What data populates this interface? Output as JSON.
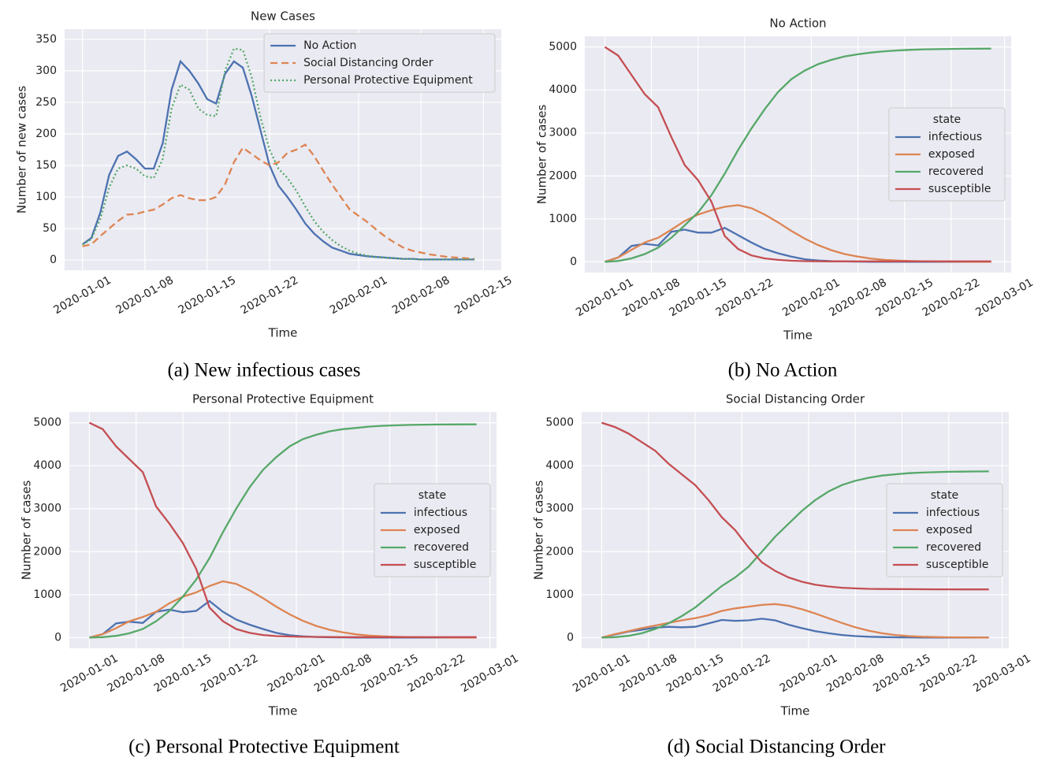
{
  "chart_data": [
    {
      "type": "line",
      "title": "New Cases",
      "caption": "(a) New infectious cases",
      "xlabel": "Time",
      "ylabel": "Number of new cases",
      "x": [
        "2020-01-01",
        "2020-01-02",
        "2020-01-03",
        "2020-01-04",
        "2020-01-05",
        "2020-01-06",
        "2020-01-07",
        "2020-01-08",
        "2020-01-09",
        "2020-01-10",
        "2020-01-11",
        "2020-01-12",
        "2020-01-13",
        "2020-01-14",
        "2020-01-15",
        "2020-01-16",
        "2020-01-17",
        "2020-01-18",
        "2020-01-19",
        "2020-01-20",
        "2020-01-21",
        "2020-01-22",
        "2020-01-23",
        "2020-01-24",
        "2020-01-25",
        "2020-01-26",
        "2020-01-27",
        "2020-01-28",
        "2020-01-29",
        "2020-01-30",
        "2020-01-31",
        "2020-02-01",
        "2020-02-02",
        "2020-02-03",
        "2020-02-04",
        "2020-02-05",
        "2020-02-06",
        "2020-02-07",
        "2020-02-08",
        "2020-02-09",
        "2020-02-10",
        "2020-02-11",
        "2020-02-12",
        "2020-02-13",
        "2020-02-14"
      ],
      "xlim": [
        "2019-12-30",
        "2020-02-17"
      ],
      "xticks": [
        "2020-01-01",
        "2020-01-08",
        "2020-01-15",
        "2020-01-22",
        "2020-02-01",
        "2020-02-08",
        "2020-02-15"
      ],
      "ylim": [
        -16,
        366
      ],
      "yticks": [
        0,
        50,
        100,
        150,
        200,
        250,
        300,
        350
      ],
      "grid": true,
      "legend": "upper right",
      "series": [
        {
          "name": "No Action",
          "color": "#4c72b0",
          "dash": "solid",
          "values": [
            25,
            35,
            75,
            135,
            165,
            172,
            160,
            145,
            145,
            185,
            270,
            315,
            300,
            280,
            255,
            248,
            295,
            315,
            305,
            260,
            205,
            150,
            118,
            100,
            80,
            58,
            42,
            30,
            20,
            15,
            10,
            8,
            6,
            5,
            4,
            3,
            2,
            2,
            1,
            1,
            1,
            1,
            1,
            1,
            1
          ]
        },
        {
          "name": "Social Distancing Order",
          "color": "#dd8452",
          "dash": "dashed",
          "values": [
            22,
            25,
            38,
            50,
            62,
            72,
            73,
            77,
            80,
            88,
            98,
            103,
            98,
            95,
            95,
            100,
            120,
            155,
            178,
            168,
            158,
            150,
            155,
            170,
            175,
            183,
            165,
            142,
            120,
            100,
            80,
            70,
            60,
            48,
            37,
            28,
            20,
            15,
            12,
            9,
            7,
            5,
            4,
            3,
            2
          ]
        },
        {
          "name": "Personal Protective Equipment",
          "color": "#55a868",
          "dash": "dotted",
          "values": [
            25,
            33,
            65,
            115,
            145,
            150,
            145,
            133,
            130,
            160,
            240,
            278,
            270,
            240,
            230,
            228,
            300,
            335,
            333,
            290,
            225,
            175,
            145,
            130,
            110,
            85,
            62,
            45,
            32,
            22,
            15,
            10,
            7,
            5,
            4,
            3,
            2,
            2,
            1,
            1,
            1,
            1,
            1,
            1,
            1
          ]
        }
      ]
    },
    {
      "type": "line",
      "title": "No Action",
      "caption": "(b) No Action",
      "xlabel": "Time",
      "ylabel": "Number of cases",
      "x": [
        "2020-01-01",
        "2020-01-03",
        "2020-01-05",
        "2020-01-07",
        "2020-01-09",
        "2020-01-11",
        "2020-01-13",
        "2020-01-15",
        "2020-01-17",
        "2020-01-19",
        "2020-01-21",
        "2020-01-23",
        "2020-01-25",
        "2020-01-27",
        "2020-01-29",
        "2020-01-31",
        "2020-02-02",
        "2020-02-04",
        "2020-02-06",
        "2020-02-08",
        "2020-02-10",
        "2020-02-12",
        "2020-02-14",
        "2020-02-16",
        "2020-02-18",
        "2020-02-20",
        "2020-02-22",
        "2020-02-24",
        "2020-02-26",
        "2020-02-28"
      ],
      "xlim": [
        "2019-12-29",
        "2020-03-02"
      ],
      "xticks": [
        "2020-01-01",
        "2020-01-08",
        "2020-01-15",
        "2020-01-22",
        "2020-02-01",
        "2020-02-08",
        "2020-02-15",
        "2020-02-22",
        "2020-03-01"
      ],
      "ylim": [
        -250,
        5250
      ],
      "yticks": [
        0,
        1000,
        2000,
        3000,
        4000,
        5000
      ],
      "grid": true,
      "legend": "center right",
      "legend_title": "state",
      "series": [
        {
          "name": "infectious",
          "color": "#4c72b0",
          "dash": "solid",
          "values": [
            0,
            100,
            370,
            420,
            380,
            700,
            750,
            680,
            680,
            790,
            620,
            450,
            300,
            200,
            120,
            60,
            30,
            15,
            8,
            4,
            2,
            1,
            1,
            1,
            1,
            1,
            1,
            1,
            1,
            1
          ]
        },
        {
          "name": "exposed",
          "color": "#dd8452",
          "dash": "solid",
          "values": [
            0,
            100,
            280,
            450,
            560,
            750,
            950,
            1100,
            1200,
            1280,
            1320,
            1250,
            1100,
            920,
            720,
            540,
            390,
            270,
            180,
            120,
            75,
            45,
            28,
            17,
            10,
            6,
            4,
            2,
            1,
            1
          ]
        },
        {
          "name": "recovered",
          "color": "#55a868",
          "dash": "solid",
          "values": [
            0,
            20,
            80,
            180,
            330,
            560,
            850,
            1150,
            1550,
            2050,
            2600,
            3100,
            3550,
            3950,
            4250,
            4450,
            4600,
            4700,
            4780,
            4830,
            4870,
            4900,
            4920,
            4935,
            4945,
            4950,
            4955,
            4958,
            4960,
            4962
          ]
        },
        {
          "name": "susceptible",
          "color": "#c44e52",
          "dash": "solid",
          "values": [
            5000,
            4800,
            4350,
            3900,
            3600,
            2900,
            2250,
            1900,
            1400,
            600,
            300,
            150,
            80,
            45,
            25,
            15,
            12,
            10,
            10,
            10,
            10,
            10,
            10,
            10,
            10,
            10,
            10,
            10,
            10,
            10
          ]
        }
      ]
    },
    {
      "type": "line",
      "title": "Personal Protective Equipment",
      "caption": "(c) Personal Protective Equipment",
      "xlabel": "Time",
      "ylabel": "Number of cases",
      "x": [
        "2020-01-01",
        "2020-01-03",
        "2020-01-05",
        "2020-01-07",
        "2020-01-09",
        "2020-01-11",
        "2020-01-13",
        "2020-01-15",
        "2020-01-17",
        "2020-01-19",
        "2020-01-21",
        "2020-01-23",
        "2020-01-25",
        "2020-01-27",
        "2020-01-29",
        "2020-01-31",
        "2020-02-02",
        "2020-02-04",
        "2020-02-06",
        "2020-02-08",
        "2020-02-10",
        "2020-02-12",
        "2020-02-14",
        "2020-02-16",
        "2020-02-18",
        "2020-02-20",
        "2020-02-22",
        "2020-02-24",
        "2020-02-26",
        "2020-02-28"
      ],
      "xlim": [
        "2019-12-29",
        "2020-03-02"
      ],
      "xticks": [
        "2020-01-01",
        "2020-01-08",
        "2020-01-15",
        "2020-01-22",
        "2020-02-01",
        "2020-02-08",
        "2020-02-15",
        "2020-02-22",
        "2020-03-01"
      ],
      "ylim": [
        -250,
        5250
      ],
      "yticks": [
        0,
        1000,
        2000,
        3000,
        4000,
        5000
      ],
      "grid": true,
      "legend": "center right",
      "legend_title": "state",
      "series": [
        {
          "name": "infectious",
          "color": "#4c72b0",
          "dash": "solid",
          "values": [
            0,
            80,
            330,
            370,
            340,
            600,
            650,
            590,
            620,
            850,
            600,
            420,
            300,
            200,
            110,
            55,
            28,
            14,
            7,
            4,
            2,
            1,
            1,
            1,
            1,
            1,
            1,
            1,
            1,
            1
          ]
        },
        {
          "name": "exposed",
          "color": "#dd8452",
          "dash": "solid",
          "values": [
            0,
            80,
            220,
            380,
            480,
            600,
            800,
            950,
            1050,
            1200,
            1310,
            1250,
            1100,
            920,
            720,
            540,
            390,
            270,
            180,
            120,
            75,
            45,
            28,
            17,
            10,
            6,
            4,
            2,
            1,
            1
          ]
        },
        {
          "name": "recovered",
          "color": "#55a868",
          "dash": "solid",
          "values": [
            0,
            10,
            40,
            100,
            200,
            380,
            620,
            950,
            1350,
            1850,
            2450,
            3000,
            3500,
            3900,
            4200,
            4450,
            4620,
            4720,
            4800,
            4850,
            4880,
            4910,
            4930,
            4940,
            4950,
            4955,
            4958,
            4960,
            4962,
            4963
          ]
        },
        {
          "name": "susceptible",
          "color": "#c44e52",
          "dash": "solid",
          "values": [
            5000,
            4850,
            4450,
            4150,
            3850,
            3050,
            2650,
            2200,
            1600,
            700,
            380,
            200,
            110,
            60,
            35,
            25,
            18,
            15,
            12,
            10,
            10,
            10,
            10,
            10,
            10,
            10,
            10,
            10,
            10,
            10
          ]
        }
      ]
    },
    {
      "type": "line",
      "title": "Social Distancing Order",
      "caption": "(d) Social Distancing Order",
      "xlabel": "Time",
      "ylabel": "Number of cases",
      "x": [
        "2020-01-01",
        "2020-01-03",
        "2020-01-05",
        "2020-01-07",
        "2020-01-09",
        "2020-01-11",
        "2020-01-13",
        "2020-01-15",
        "2020-01-17",
        "2020-01-19",
        "2020-01-21",
        "2020-01-23",
        "2020-01-25",
        "2020-01-27",
        "2020-01-29",
        "2020-01-31",
        "2020-02-02",
        "2020-02-04",
        "2020-02-06",
        "2020-02-08",
        "2020-02-10",
        "2020-02-12",
        "2020-02-14",
        "2020-02-16",
        "2020-02-18",
        "2020-02-20",
        "2020-02-22",
        "2020-02-24",
        "2020-02-26",
        "2020-02-28"
      ],
      "xlim": [
        "2019-12-29",
        "2020-03-02"
      ],
      "xticks": [
        "2020-01-01",
        "2020-01-08",
        "2020-01-15",
        "2020-01-22",
        "2020-02-01",
        "2020-02-08",
        "2020-02-15",
        "2020-02-22",
        "2020-03-01"
      ],
      "ylim": [
        -250,
        5250
      ],
      "yticks": [
        0,
        1000,
        2000,
        3000,
        4000,
        5000
      ],
      "grid": true,
      "legend": "center right",
      "legend_title": "state",
      "series": [
        {
          "name": "infectious",
          "color": "#4c72b0",
          "dash": "solid",
          "values": [
            0,
            70,
            140,
            180,
            230,
            250,
            240,
            250,
            330,
            410,
            390,
            400,
            440,
            400,
            300,
            220,
            150,
            100,
            60,
            35,
            20,
            12,
            7,
            4,
            2,
            1,
            1,
            1,
            1,
            1
          ]
        },
        {
          "name": "exposed",
          "color": "#dd8452",
          "dash": "solid",
          "values": [
            0,
            80,
            150,
            220,
            280,
            340,
            400,
            450,
            520,
            620,
            680,
            720,
            760,
            780,
            740,
            660,
            560,
            450,
            340,
            240,
            160,
            100,
            60,
            35,
            20,
            12,
            7,
            4,
            2,
            1
          ]
        },
        {
          "name": "recovered",
          "color": "#55a868",
          "dash": "solid",
          "values": [
            0,
            10,
            40,
            100,
            200,
            330,
            500,
            700,
            950,
            1200,
            1400,
            1650,
            2000,
            2350,
            2650,
            2950,
            3200,
            3400,
            3550,
            3650,
            3720,
            3770,
            3800,
            3825,
            3840,
            3850,
            3858,
            3863,
            3866,
            3868
          ]
        },
        {
          "name": "susceptible",
          "color": "#c44e52",
          "dash": "solid",
          "values": [
            5000,
            4900,
            4750,
            4550,
            4350,
            4050,
            3800,
            3550,
            3200,
            2800,
            2500,
            2100,
            1750,
            1550,
            1400,
            1300,
            1230,
            1190,
            1160,
            1145,
            1135,
            1130,
            1128,
            1126,
            1125,
            1124,
            1123,
            1122,
            1122,
            1122
          ]
        }
      ]
    }
  ]
}
